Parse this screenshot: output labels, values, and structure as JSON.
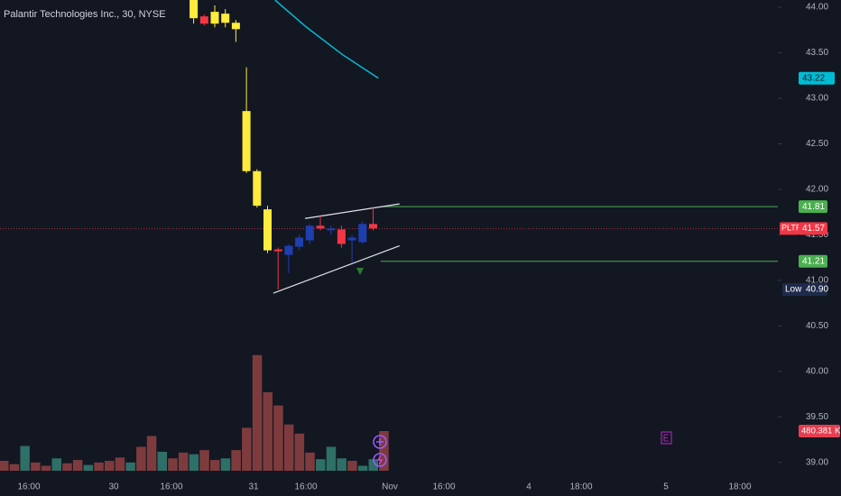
{
  "chart_data": {
    "type": "candlestick",
    "title": "Palantir Technologies Inc., 30, NYSE",
    "ylim": [
      38.76,
      44.08
    ],
    "yticks": [
      {
        "value": 44,
        "label": "44.00"
      },
      {
        "value": 43.5,
        "label": "43.50"
      },
      {
        "value": 43,
        "label": "43.00"
      },
      {
        "value": 42.5,
        "label": "42.50"
      },
      {
        "value": 42,
        "label": "42.00"
      },
      {
        "value": 41.5,
        "label": "41.50"
      },
      {
        "value": 41,
        "label": "41.00"
      },
      {
        "value": 40.5,
        "label": "40.50"
      },
      {
        "value": 40,
        "label": "40.00"
      },
      {
        "value": 39.5,
        "label": "39.50"
      },
      {
        "value": 39,
        "label": "39.00"
      }
    ],
    "xticks": [
      "16:00",
      "30",
      "16:00",
      "31",
      "16:00",
      "Nov",
      "16:00",
      "4",
      "18:00",
      "5",
      "18:00"
    ],
    "open": [
      44.08,
      43.82,
      43.95,
      43.93,
      43.83,
      42.86,
      42.2,
      41.78,
      41.32,
      41.28,
      41.37,
      41.44,
      41.6,
      41.57,
      41.56,
      41.44,
      41.42,
      41.62
    ],
    "high": [
      44.08,
      43.92,
      44.02,
      43.98,
      43.86,
      43.34,
      42.22,
      41.82,
      41.36,
      41.4,
      41.5,
      41.62,
      41.72,
      41.6,
      41.6,
      41.5,
      41.65,
      41.81
    ],
    "low": [
      43.82,
      43.8,
      43.78,
      43.78,
      43.62,
      42.18,
      41.8,
      41.3,
      40.9,
      41.08,
      41.33,
      41.4,
      41.55,
      41.5,
      41.36,
      41.2,
      41.4,
      41.55
    ],
    "close": [
      43.88,
      43.9,
      43.82,
      43.83,
      43.76,
      42.2,
      41.82,
      41.33,
      41.34,
      41.38,
      41.47,
      41.6,
      41.57,
      41.55,
      41.4,
      41.47,
      41.62,
      41.57
    ],
    "colors": [
      "#ffeb3b",
      "#f23645",
      "#ffeb3b",
      "#ffeb3b",
      "#ffeb3b",
      "#ffeb3b",
      "#ffeb3b",
      "#ffeb3b",
      "#f23645",
      "#1e3fb0",
      "#1e3fb0",
      "#1e3fb0",
      "#f23645",
      "#1e3fb0",
      "#f23645",
      "#1e3fb0",
      "#1e3fb0",
      "#f23645"
    ],
    "moving_average": {
      "color": "#00bcd4",
      "x": [
        7.7,
        10.7,
        14.1,
        17.5
      ],
      "values": [
        44.08,
        43.78,
        43.48,
        43.22
      ]
    },
    "volume": {
      "values": [
        120,
        80,
        300,
        100,
        60,
        150,
        90,
        130,
        70,
        100,
        120,
        160,
        100,
        290,
        420,
        230,
        150,
        220,
        200,
        250,
        130,
        150,
        250,
        520,
        1400,
        950,
        790,
        560,
        450,
        220,
        140,
        290,
        150,
        120,
        60,
        140,
        480.381
      ],
      "colors": [
        "#7e3b3e",
        "#7e3b3e",
        "#2e6f68",
        "#7e3b3e",
        "#7e3b3e",
        "#2e6f68",
        "#7e3b3e",
        "#7e3b3e",
        "#2e6f68",
        "#7e3b3e",
        "#7e3b3e",
        "#7e3b3e",
        "#2e6f68",
        "#7e3b3e",
        "#7e3b3e",
        "#2e6f68",
        "#7e3b3e",
        "#7e3b3e",
        "#2e6f68",
        "#7e3b3e",
        "#7e3b3e",
        "#2e6f68",
        "#7e3b3e",
        "#7e3b3e",
        "#7e3b3e",
        "#7e3b3e",
        "#7e3b3e",
        "#7e3b3e",
        "#7e3b3e",
        "#7e3b3e",
        "#2e6f68",
        "#2e6f68",
        "#2e6f68",
        "#7e3b3e",
        "#2e6f68",
        "#2e6f68",
        "#7e3b3e"
      ],
      "value_label": "480.381 K"
    },
    "levels": [
      {
        "label": 41.81,
        "value": 41.81,
        "color": "#4caf50"
      },
      {
        "label": 41.21,
        "value": 41.21,
        "color": "#4caf50"
      }
    ],
    "ma_label": 43.22,
    "symbol": "PLTR",
    "last_price": 41.57,
    "low_text": "Low",
    "low_price": {
      "value": 40.9,
      "label": "40.90"
    },
    "trendlines": [
      {
        "x": [
          10.55,
          19.5
        ],
        "values": [
          41.68,
          41.84
        ]
      },
      {
        "x": [
          7.55,
          19.5
        ],
        "values": [
          40.86,
          41.38
        ]
      }
    ]
  }
}
